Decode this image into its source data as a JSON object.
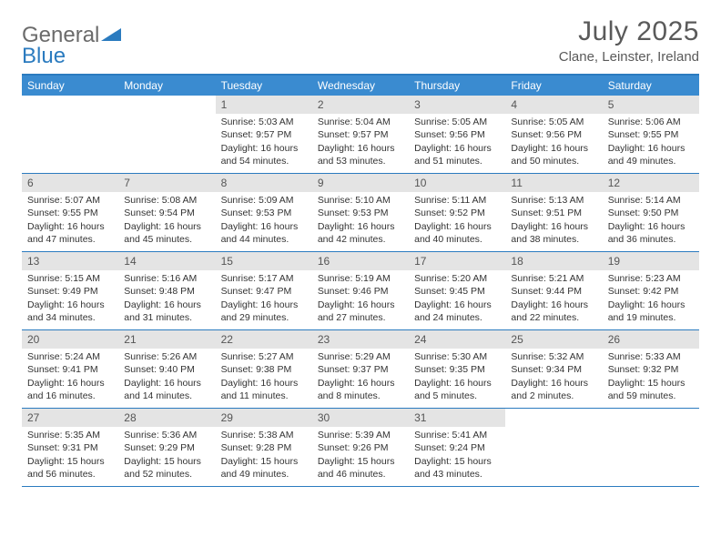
{
  "brand": {
    "part1": "General",
    "part2": "Blue"
  },
  "title": {
    "month": "July 2025",
    "location": "Clane, Leinster, Ireland"
  },
  "colors": {
    "header_bar": "#3a8bd0",
    "border": "#2b7bbf",
    "daynum_bg": "#e4e4e4",
    "text": "#333333",
    "title_text": "#5a5a5a",
    "logo_gray": "#6b6b6b"
  },
  "weekdays": [
    "Sunday",
    "Monday",
    "Tuesday",
    "Wednesday",
    "Thursday",
    "Friday",
    "Saturday"
  ],
  "weeks": [
    [
      {
        "n": "",
        "sr": "",
        "ss": "",
        "dl": ""
      },
      {
        "n": "",
        "sr": "",
        "ss": "",
        "dl": ""
      },
      {
        "n": "1",
        "sr": "Sunrise: 5:03 AM",
        "ss": "Sunset: 9:57 PM",
        "dl": "Daylight: 16 hours and 54 minutes."
      },
      {
        "n": "2",
        "sr": "Sunrise: 5:04 AM",
        "ss": "Sunset: 9:57 PM",
        "dl": "Daylight: 16 hours and 53 minutes."
      },
      {
        "n": "3",
        "sr": "Sunrise: 5:05 AM",
        "ss": "Sunset: 9:56 PM",
        "dl": "Daylight: 16 hours and 51 minutes."
      },
      {
        "n": "4",
        "sr": "Sunrise: 5:05 AM",
        "ss": "Sunset: 9:56 PM",
        "dl": "Daylight: 16 hours and 50 minutes."
      },
      {
        "n": "5",
        "sr": "Sunrise: 5:06 AM",
        "ss": "Sunset: 9:55 PM",
        "dl": "Daylight: 16 hours and 49 minutes."
      }
    ],
    [
      {
        "n": "6",
        "sr": "Sunrise: 5:07 AM",
        "ss": "Sunset: 9:55 PM",
        "dl": "Daylight: 16 hours and 47 minutes."
      },
      {
        "n": "7",
        "sr": "Sunrise: 5:08 AM",
        "ss": "Sunset: 9:54 PM",
        "dl": "Daylight: 16 hours and 45 minutes."
      },
      {
        "n": "8",
        "sr": "Sunrise: 5:09 AM",
        "ss": "Sunset: 9:53 PM",
        "dl": "Daylight: 16 hours and 44 minutes."
      },
      {
        "n": "9",
        "sr": "Sunrise: 5:10 AM",
        "ss": "Sunset: 9:53 PM",
        "dl": "Daylight: 16 hours and 42 minutes."
      },
      {
        "n": "10",
        "sr": "Sunrise: 5:11 AM",
        "ss": "Sunset: 9:52 PM",
        "dl": "Daylight: 16 hours and 40 minutes."
      },
      {
        "n": "11",
        "sr": "Sunrise: 5:13 AM",
        "ss": "Sunset: 9:51 PM",
        "dl": "Daylight: 16 hours and 38 minutes."
      },
      {
        "n": "12",
        "sr": "Sunrise: 5:14 AM",
        "ss": "Sunset: 9:50 PM",
        "dl": "Daylight: 16 hours and 36 minutes."
      }
    ],
    [
      {
        "n": "13",
        "sr": "Sunrise: 5:15 AM",
        "ss": "Sunset: 9:49 PM",
        "dl": "Daylight: 16 hours and 34 minutes."
      },
      {
        "n": "14",
        "sr": "Sunrise: 5:16 AM",
        "ss": "Sunset: 9:48 PM",
        "dl": "Daylight: 16 hours and 31 minutes."
      },
      {
        "n": "15",
        "sr": "Sunrise: 5:17 AM",
        "ss": "Sunset: 9:47 PM",
        "dl": "Daylight: 16 hours and 29 minutes."
      },
      {
        "n": "16",
        "sr": "Sunrise: 5:19 AM",
        "ss": "Sunset: 9:46 PM",
        "dl": "Daylight: 16 hours and 27 minutes."
      },
      {
        "n": "17",
        "sr": "Sunrise: 5:20 AM",
        "ss": "Sunset: 9:45 PM",
        "dl": "Daylight: 16 hours and 24 minutes."
      },
      {
        "n": "18",
        "sr": "Sunrise: 5:21 AM",
        "ss": "Sunset: 9:44 PM",
        "dl": "Daylight: 16 hours and 22 minutes."
      },
      {
        "n": "19",
        "sr": "Sunrise: 5:23 AM",
        "ss": "Sunset: 9:42 PM",
        "dl": "Daylight: 16 hours and 19 minutes."
      }
    ],
    [
      {
        "n": "20",
        "sr": "Sunrise: 5:24 AM",
        "ss": "Sunset: 9:41 PM",
        "dl": "Daylight: 16 hours and 16 minutes."
      },
      {
        "n": "21",
        "sr": "Sunrise: 5:26 AM",
        "ss": "Sunset: 9:40 PM",
        "dl": "Daylight: 16 hours and 14 minutes."
      },
      {
        "n": "22",
        "sr": "Sunrise: 5:27 AM",
        "ss": "Sunset: 9:38 PM",
        "dl": "Daylight: 16 hours and 11 minutes."
      },
      {
        "n": "23",
        "sr": "Sunrise: 5:29 AM",
        "ss": "Sunset: 9:37 PM",
        "dl": "Daylight: 16 hours and 8 minutes."
      },
      {
        "n": "24",
        "sr": "Sunrise: 5:30 AM",
        "ss": "Sunset: 9:35 PM",
        "dl": "Daylight: 16 hours and 5 minutes."
      },
      {
        "n": "25",
        "sr": "Sunrise: 5:32 AM",
        "ss": "Sunset: 9:34 PM",
        "dl": "Daylight: 16 hours and 2 minutes."
      },
      {
        "n": "26",
        "sr": "Sunrise: 5:33 AM",
        "ss": "Sunset: 9:32 PM",
        "dl": "Daylight: 15 hours and 59 minutes."
      }
    ],
    [
      {
        "n": "27",
        "sr": "Sunrise: 5:35 AM",
        "ss": "Sunset: 9:31 PM",
        "dl": "Daylight: 15 hours and 56 minutes."
      },
      {
        "n": "28",
        "sr": "Sunrise: 5:36 AM",
        "ss": "Sunset: 9:29 PM",
        "dl": "Daylight: 15 hours and 52 minutes."
      },
      {
        "n": "29",
        "sr": "Sunrise: 5:38 AM",
        "ss": "Sunset: 9:28 PM",
        "dl": "Daylight: 15 hours and 49 minutes."
      },
      {
        "n": "30",
        "sr": "Sunrise: 5:39 AM",
        "ss": "Sunset: 9:26 PM",
        "dl": "Daylight: 15 hours and 46 minutes."
      },
      {
        "n": "31",
        "sr": "Sunrise: 5:41 AM",
        "ss": "Sunset: 9:24 PM",
        "dl": "Daylight: 15 hours and 43 minutes."
      },
      {
        "n": "",
        "sr": "",
        "ss": "",
        "dl": ""
      },
      {
        "n": "",
        "sr": "",
        "ss": "",
        "dl": ""
      }
    ]
  ]
}
